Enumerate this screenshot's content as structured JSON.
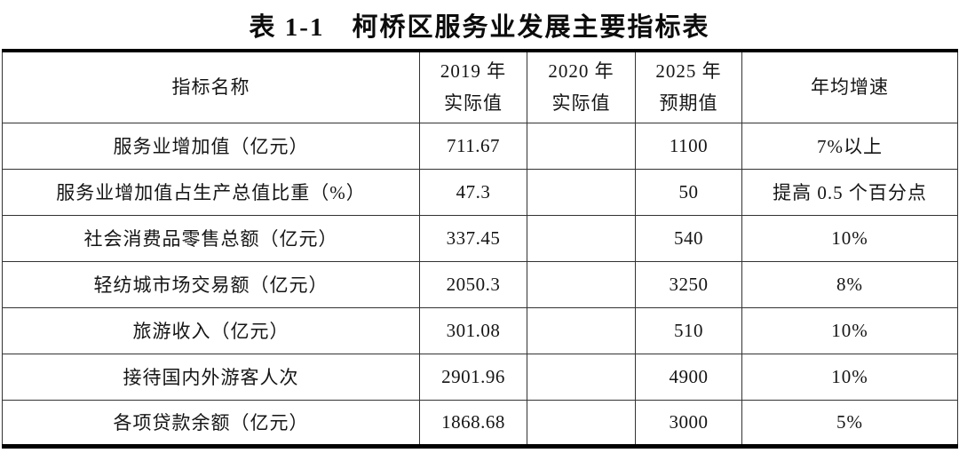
{
  "page": {
    "background": "#ffffff",
    "text_color": "#151515",
    "rule_color": "#000000",
    "grid_color": "#333333"
  },
  "title": "表 1-1　柯桥区服务业发展主要指标表",
  "table": {
    "columns": [
      {
        "id": "indicator",
        "label": "指标名称"
      },
      {
        "id": "y2019",
        "label": "2019 年\n实际值"
      },
      {
        "id": "y2020",
        "label": "2020 年\n实际值"
      },
      {
        "id": "y2025",
        "label": "2025 年\n预期值"
      },
      {
        "id": "growth",
        "label": "年均增速"
      }
    ],
    "rows": [
      {
        "indicator": "服务业增加值（亿元）",
        "y2019": "711.67",
        "y2020": "",
        "y2025": "1100",
        "growth": "7%以上"
      },
      {
        "indicator": "服务业增加值占生产总值比重（%）",
        "y2019": "47.3",
        "y2020": "",
        "y2025": "50",
        "growth": "提高 0.5 个百分点"
      },
      {
        "indicator": "社会消费品零售总额（亿元）",
        "y2019": "337.45",
        "y2020": "",
        "y2025": "540",
        "growth": "10%"
      },
      {
        "indicator": "轻纺城市场交易额（亿元）",
        "y2019": "2050.3",
        "y2020": "",
        "y2025": "3250",
        "growth": "8%"
      },
      {
        "indicator": "旅游收入（亿元）",
        "y2019": "301.08",
        "y2020": "",
        "y2025": "510",
        "growth": "10%"
      },
      {
        "indicator": "接待国内外游客人次",
        "y2019": "2901.96",
        "y2020": "",
        "y2025": "4900",
        "growth": "10%"
      },
      {
        "indicator": "各项贷款余额（亿元）",
        "y2019": "1868.68",
        "y2020": "",
        "y2025": "3000",
        "growth": "5%"
      }
    ]
  }
}
